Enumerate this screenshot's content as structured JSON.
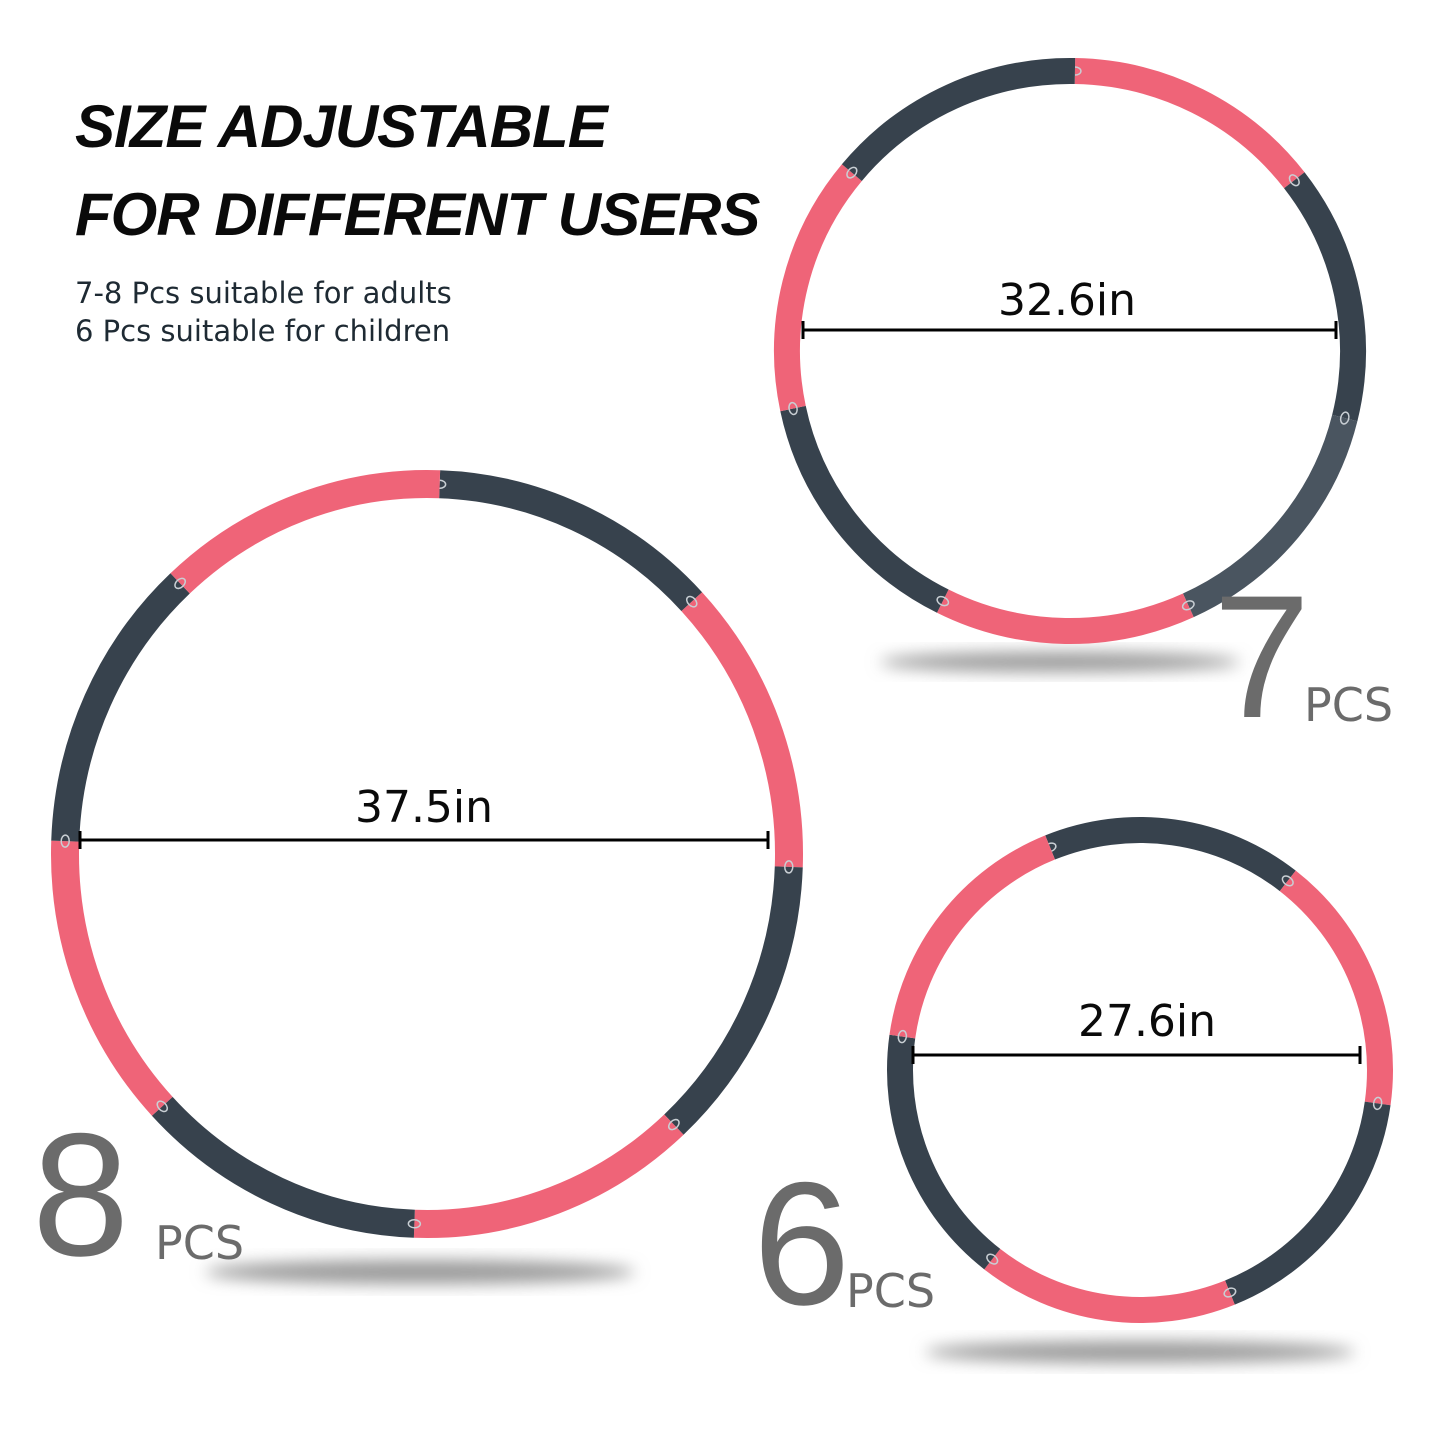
{
  "heading": {
    "line1": "SIZE ADJUSTABLE",
    "line2": "FOR DIFFERENT USERS"
  },
  "subtitle": {
    "line1": "7-8 Pcs suitable for adults",
    "line2": "6 Pcs suitable for children"
  },
  "colors": {
    "pink": "#ef6478",
    "dark": "#37424d",
    "grey": "#4a5560",
    "count_text": "#6b6b6b"
  },
  "hoops": [
    {
      "id": "8pcs",
      "count": "8",
      "unit": "PCS",
      "diameter": "37.5in",
      "segments": [
        "dark",
        "pink",
        "dark",
        "pink",
        "dark",
        "pink",
        "dark",
        "pink"
      ]
    },
    {
      "id": "7pcs",
      "count": "7",
      "unit": "PCS",
      "diameter": "32.6in",
      "segments": [
        "pink",
        "dark",
        "grey",
        "pink",
        "dark",
        "pink",
        "dark"
      ]
    },
    {
      "id": "6pcs",
      "count": "6",
      "unit": "PCS",
      "diameter": "27.6in",
      "segments": [
        "dark",
        "pink",
        "dark",
        "pink",
        "dark",
        "pink"
      ]
    }
  ]
}
